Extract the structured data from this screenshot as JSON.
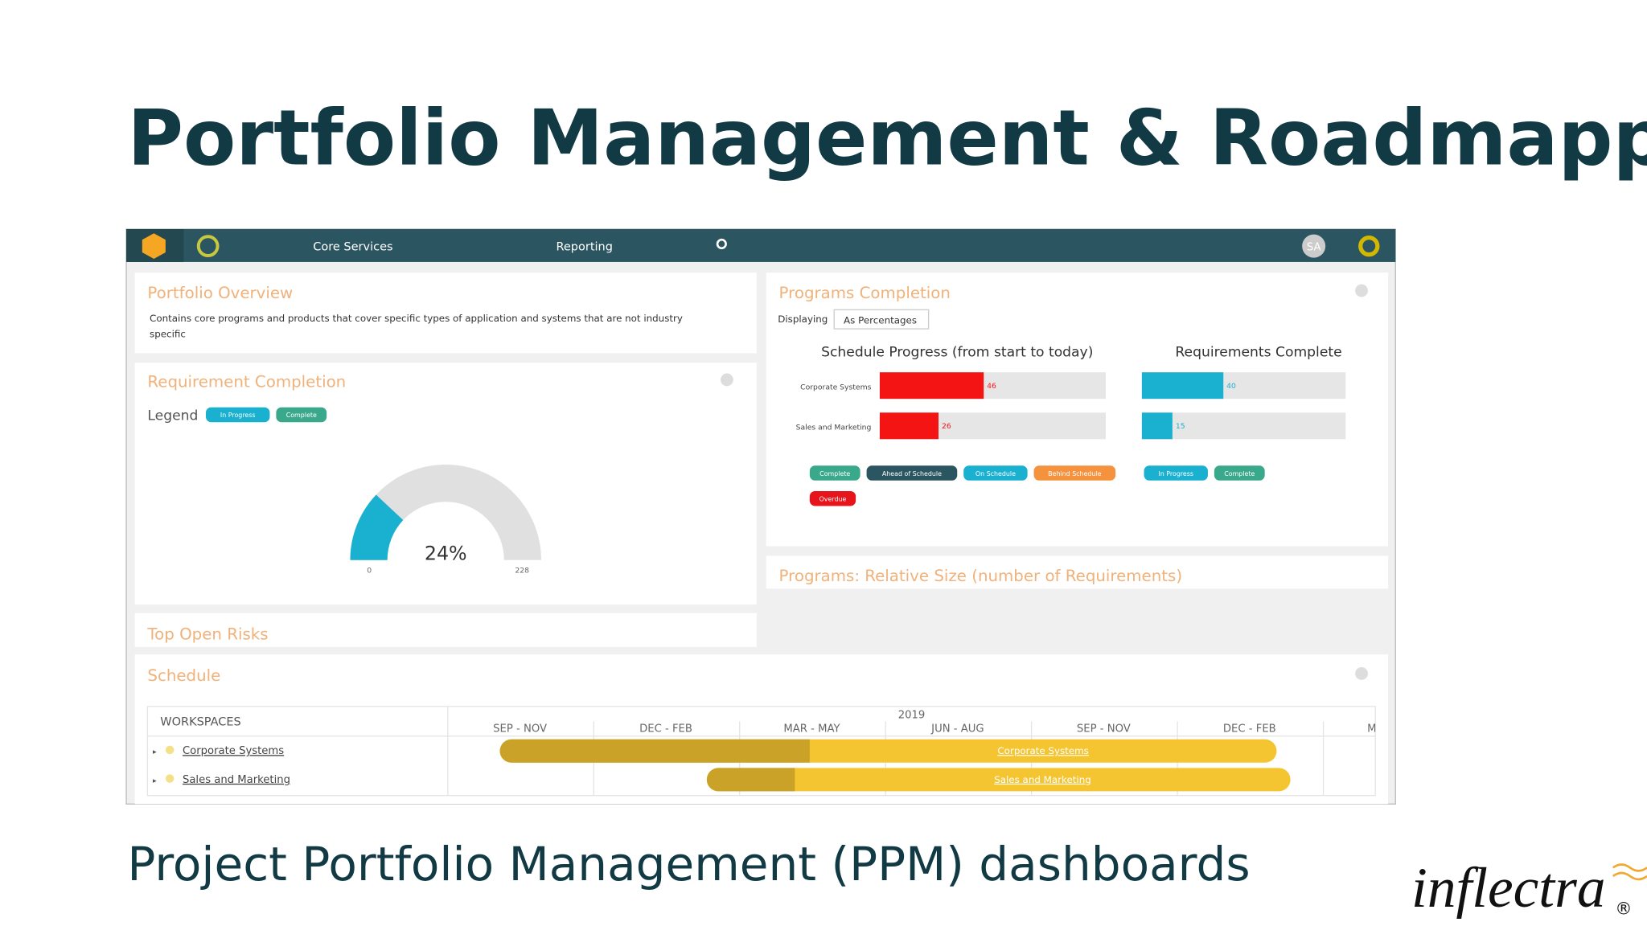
{
  "slide": {
    "title": "Portfolio Management & Roadmapping",
    "subtitle": "Project Portfolio Management (PPM) dashboards",
    "logo": "inflectra"
  },
  "nav": {
    "items": [
      "Core Services",
      "Reporting"
    ],
    "avatar": "SA"
  },
  "overview": {
    "title": "Portfolio Overview",
    "description": "Contains core programs and products that cover specific types of application and systems that are not industry",
    "description_2": "specific"
  },
  "requirement_completion": {
    "title": "Requirement Completion",
    "legend_label": "Legend",
    "legend": [
      "In Progress",
      "Complete"
    ],
    "gauge": {
      "value": 24,
      "value_label": "24%",
      "min": 0,
      "max": 228
    }
  },
  "risks": {
    "title": "Top Open Risks"
  },
  "programs": {
    "title": "Programs Completion",
    "displaying_label": "Displaying",
    "displaying_value": "As Percentages",
    "schedule_title": "Schedule Progress (from start to today)",
    "requirements_title": "Requirements Complete",
    "rows": [
      {
        "name": "Corporate Systems",
        "schedule": 46,
        "requirements": 40
      },
      {
        "name": "Sales and Marketing",
        "schedule": 26,
        "requirements": 15
      }
    ],
    "schedule_legend": [
      "Complete",
      "Ahead of Schedule",
      "On Schedule",
      "Behind Schedule",
      "Overdue"
    ],
    "requirements_legend": [
      "In Progress",
      "Complete"
    ]
  },
  "relative_size": {
    "title": "Programs: Relative Size (number of Requirements)"
  },
  "schedule": {
    "title": "Schedule",
    "column": "WORKSPACES",
    "year": "2019",
    "periods": [
      "SEP - NOV",
      "DEC - FEB",
      "MAR - MAY",
      "JUN - AUG",
      "SEP - NOV",
      "DEC - FEB",
      "MAR - MAY"
    ],
    "rows": [
      "Corporate Systems",
      "Sales and Marketing"
    ]
  }
}
